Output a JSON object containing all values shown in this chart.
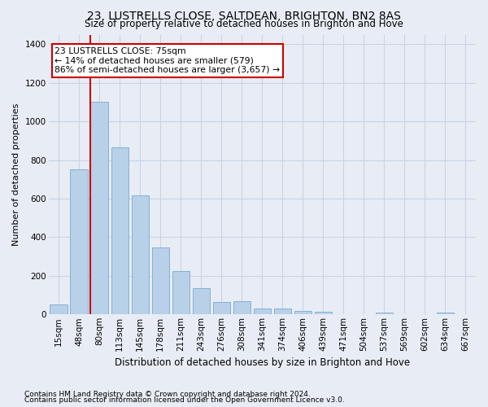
{
  "title": "23, LUSTRELLS CLOSE, SALTDEAN, BRIGHTON, BN2 8AS",
  "subtitle": "Size of property relative to detached houses in Brighton and Hove",
  "xlabel": "Distribution of detached houses by size in Brighton and Hove",
  "ylabel": "Number of detached properties",
  "footer1": "Contains HM Land Registry data © Crown copyright and database right 2024.",
  "footer2": "Contains public sector information licensed under the Open Government Licence v3.0.",
  "categories": [
    "15sqm",
    "48sqm",
    "80sqm",
    "113sqm",
    "145sqm",
    "178sqm",
    "211sqm",
    "243sqm",
    "276sqm",
    "308sqm",
    "341sqm",
    "374sqm",
    "406sqm",
    "439sqm",
    "471sqm",
    "504sqm",
    "537sqm",
    "569sqm",
    "602sqm",
    "634sqm",
    "667sqm"
  ],
  "values": [
    50,
    750,
    1100,
    865,
    615,
    345,
    225,
    135,
    65,
    70,
    30,
    30,
    20,
    12,
    0,
    0,
    10,
    0,
    0,
    10,
    0
  ],
  "bar_color": "#b8d0e8",
  "bar_edge_color": "#7aaad0",
  "vline_color": "#cc0000",
  "vline_x": 1.575,
  "annotation_line1": "23 LUSTRELLS CLOSE: 75sqm",
  "annotation_line2": "← 14% of detached houses are smaller (579)",
  "annotation_line3": "86% of semi-detached houses are larger (3,657) →",
  "annotation_box_color": "#cc0000",
  "annotation_facecolor": "#ffffff",
  "ylim": [
    0,
    1450
  ],
  "yticks": [
    0,
    200,
    400,
    600,
    800,
    1000,
    1200,
    1400
  ],
  "grid_color": "#c8d4e4",
  "bg_color": "#e8edf5",
  "plot_bg_color": "#e8edf5",
  "title_fontsize": 10,
  "subtitle_fontsize": 8.5,
  "ylabel_fontsize": 8,
  "xlabel_fontsize": 8.5,
  "tick_fontsize": 7.5,
  "footer_fontsize": 6.5
}
